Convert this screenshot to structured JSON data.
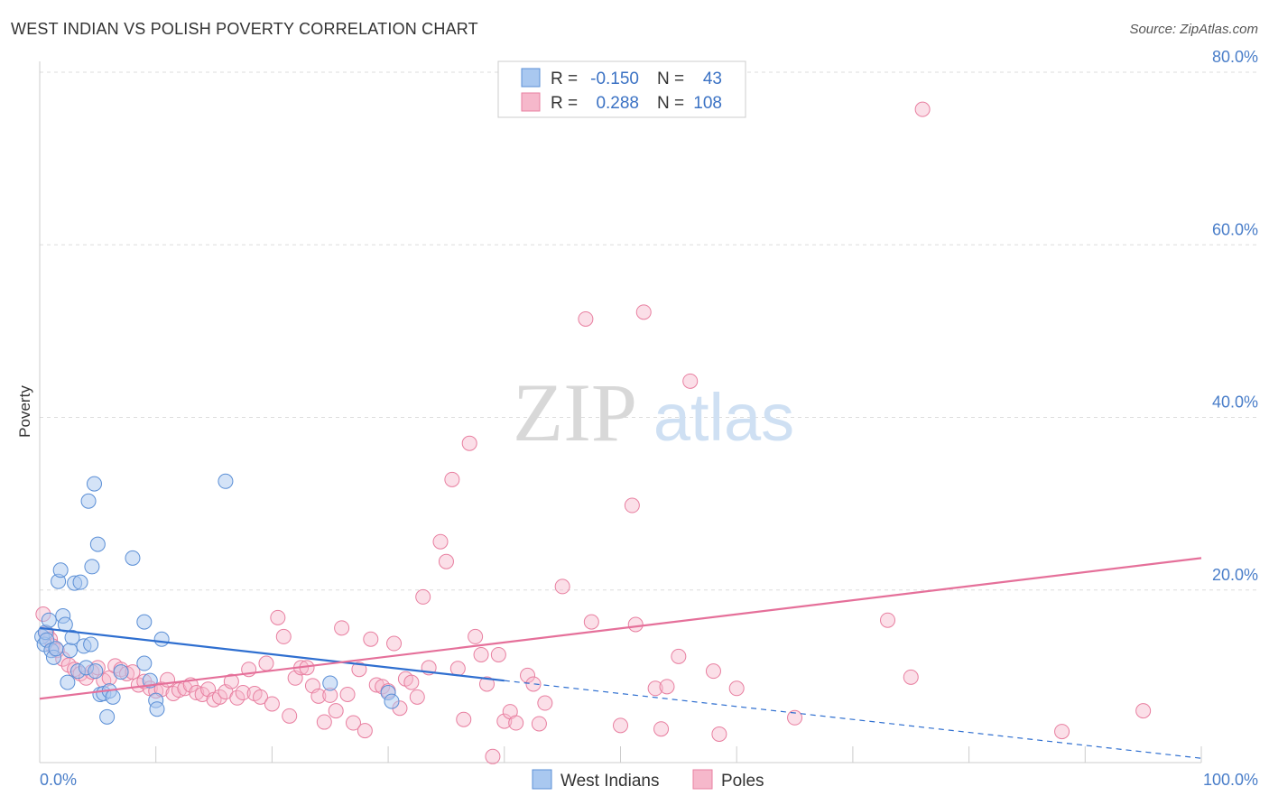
{
  "title": "WEST INDIAN VS POLISH POVERTY CORRELATION CHART",
  "source": "Source: ZipAtlas.com",
  "colors": {
    "west_indians_fill": "#a9c8f0",
    "west_indians_stroke": "#5b8fd6",
    "west_indians_line": "#2f6fd0",
    "poles_fill": "#f6b8cb",
    "poles_stroke": "#e87fa0",
    "poles_line": "#e5709a",
    "tick_label": "#4a7ec9",
    "grid": "#dddddd"
  },
  "legend": {
    "r_label": "R =",
    "n_label": "N =",
    "rows": [
      {
        "name": "West Indians",
        "r": "-0.150",
        "n": "43"
      },
      {
        "name": "Poles",
        "r": "0.288",
        "n": "108"
      }
    ]
  },
  "watermark": {
    "zip": "ZIP",
    "atlas": "atlas"
  },
  "chart_data": {
    "type": "scatter",
    "title": "WEST INDIAN VS POLISH POVERTY CORRELATION CHART",
    "xlabel": "",
    "ylabel": "Poverty",
    "xlim": [
      0,
      100
    ],
    "ylim": [
      0,
      80
    ],
    "x_tick_labels": [
      "0.0%",
      "100.0%"
    ],
    "y_ticks": [
      20,
      40,
      60,
      80
    ],
    "y_tick_labels": [
      "20.0%",
      "40.0%",
      "60.0%",
      "80.0%"
    ],
    "grid": true,
    "legend_position": "bottom-center",
    "series": [
      {
        "name": "West Indians",
        "trend": {
          "x0": 0,
          "y0": 15.6,
          "x1": 40,
          "y1": 9.5,
          "dashed_to_x": 100,
          "dashed_to_y": 0.5
        },
        "points": [
          [
            0.2,
            14.6
          ],
          [
            0.4,
            13.7
          ],
          [
            0.5,
            15.1
          ],
          [
            0.6,
            14.2
          ],
          [
            0.8,
            16.5
          ],
          [
            1.0,
            13.0
          ],
          [
            1.2,
            12.2
          ],
          [
            1.4,
            13.2
          ],
          [
            1.6,
            21.0
          ],
          [
            1.8,
            22.3
          ],
          [
            2.0,
            17.0
          ],
          [
            2.2,
            16.0
          ],
          [
            2.4,
            9.3
          ],
          [
            2.6,
            13.0
          ],
          [
            2.8,
            14.5
          ],
          [
            3.0,
            20.8
          ],
          [
            3.3,
            10.6
          ],
          [
            3.5,
            20.9
          ],
          [
            3.8,
            13.5
          ],
          [
            4.0,
            11.0
          ],
          [
            4.2,
            30.3
          ],
          [
            4.4,
            13.7
          ],
          [
            4.5,
            22.7
          ],
          [
            4.7,
            32.3
          ],
          [
            4.8,
            10.6
          ],
          [
            5.0,
            25.3
          ],
          [
            5.2,
            7.9
          ],
          [
            5.5,
            8.0
          ],
          [
            5.8,
            5.3
          ],
          [
            6.0,
            8.3
          ],
          [
            6.3,
            7.6
          ],
          [
            7.0,
            10.5
          ],
          [
            8.0,
            23.7
          ],
          [
            9.0,
            11.5
          ],
          [
            9.0,
            16.3
          ],
          [
            9.5,
            9.5
          ],
          [
            10.0,
            7.2
          ],
          [
            10.1,
            6.2
          ],
          [
            10.5,
            14.3
          ],
          [
            16.0,
            32.6
          ],
          [
            30.0,
            8.1
          ],
          [
            30.3,
            7.1
          ],
          [
            25.0,
            9.2
          ]
        ]
      },
      {
        "name": "Poles",
        "trend": {
          "x0": 0,
          "y0": 7.4,
          "x1": 100,
          "y1": 23.7
        },
        "points": [
          [
            0.3,
            17.2
          ],
          [
            0.6,
            15.0
          ],
          [
            0.9,
            14.3
          ],
          [
            1.1,
            13.5
          ],
          [
            1.5,
            13.0
          ],
          [
            2.0,
            12.0
          ],
          [
            2.5,
            11.3
          ],
          [
            3.0,
            10.8
          ],
          [
            3.5,
            10.3
          ],
          [
            4.0,
            9.8
          ],
          [
            4.5,
            10.5
          ],
          [
            5.0,
            11.0
          ],
          [
            5.5,
            9.5
          ],
          [
            6.0,
            9.8
          ],
          [
            6.5,
            11.2
          ],
          [
            7.0,
            10.8
          ],
          [
            7.5,
            10.3
          ],
          [
            8.0,
            10.5
          ],
          [
            8.5,
            9.0
          ],
          [
            9.0,
            9.4
          ],
          [
            9.5,
            8.6
          ],
          [
            10.0,
            8.3
          ],
          [
            10.5,
            8.5
          ],
          [
            11.0,
            9.6
          ],
          [
            11.5,
            8.0
          ],
          [
            12.0,
            8.4
          ],
          [
            12.5,
            8.6
          ],
          [
            13.0,
            9.0
          ],
          [
            13.5,
            8.1
          ],
          [
            14.0,
            7.9
          ],
          [
            14.5,
            8.5
          ],
          [
            15.0,
            7.3
          ],
          [
            15.5,
            7.6
          ],
          [
            16.0,
            8.2
          ],
          [
            16.5,
            9.4
          ],
          [
            17.0,
            7.5
          ],
          [
            17.5,
            8.1
          ],
          [
            18.0,
            10.8
          ],
          [
            18.5,
            8.0
          ],
          [
            19.0,
            7.6
          ],
          [
            19.5,
            11.5
          ],
          [
            20.0,
            6.8
          ],
          [
            20.5,
            16.8
          ],
          [
            21.0,
            14.6
          ],
          [
            21.5,
            5.4
          ],
          [
            22.0,
            9.8
          ],
          [
            22.5,
            11.0
          ],
          [
            23.0,
            11.0
          ],
          [
            23.5,
            8.9
          ],
          [
            24.0,
            7.7
          ],
          [
            24.5,
            4.7
          ],
          [
            25.0,
            7.8
          ],
          [
            25.5,
            6.0
          ],
          [
            26.0,
            15.6
          ],
          [
            26.5,
            7.9
          ],
          [
            27.0,
            4.6
          ],
          [
            27.5,
            10.8
          ],
          [
            28.0,
            3.7
          ],
          [
            28.5,
            14.3
          ],
          [
            29.0,
            9.0
          ],
          [
            29.5,
            8.8
          ],
          [
            30.0,
            8.3
          ],
          [
            30.5,
            13.8
          ],
          [
            31.0,
            6.3
          ],
          [
            31.5,
            9.7
          ],
          [
            32.0,
            9.3
          ],
          [
            32.5,
            7.6
          ],
          [
            33.0,
            19.2
          ],
          [
            33.5,
            11.0
          ],
          [
            34.5,
            25.6
          ],
          [
            35.0,
            23.3
          ],
          [
            35.5,
            32.8
          ],
          [
            36.0,
            10.9
          ],
          [
            36.5,
            5.0
          ],
          [
            37.0,
            37.0
          ],
          [
            37.5,
            14.6
          ],
          [
            38.0,
            12.5
          ],
          [
            38.5,
            9.1
          ],
          [
            39.0,
            0.7
          ],
          [
            39.5,
            12.5
          ],
          [
            40.0,
            4.8
          ],
          [
            40.5,
            5.9
          ],
          [
            41.0,
            4.6
          ],
          [
            42.0,
            10.1
          ],
          [
            42.5,
            9.1
          ],
          [
            43.0,
            4.5
          ],
          [
            43.5,
            6.9
          ],
          [
            45.0,
            20.4
          ],
          [
            47.0,
            51.4
          ],
          [
            47.5,
            16.3
          ],
          [
            50.0,
            4.3
          ],
          [
            51.0,
            29.8
          ],
          [
            51.3,
            16.0
          ],
          [
            52.0,
            52.2
          ],
          [
            53.0,
            8.6
          ],
          [
            53.5,
            3.9
          ],
          [
            54.0,
            8.8
          ],
          [
            55.0,
            12.3
          ],
          [
            56.0,
            44.2
          ],
          [
            58.0,
            10.6
          ],
          [
            58.5,
            3.3
          ],
          [
            60.0,
            8.6
          ],
          [
            75.0,
            9.9
          ],
          [
            76.0,
            75.7
          ],
          [
            88.0,
            3.6
          ],
          [
            73.0,
            16.5
          ],
          [
            95.0,
            6.0
          ],
          [
            65.0,
            5.2
          ]
        ]
      }
    ]
  },
  "bottom_legend": [
    {
      "name": "West Indians"
    },
    {
      "name": "Poles"
    }
  ]
}
